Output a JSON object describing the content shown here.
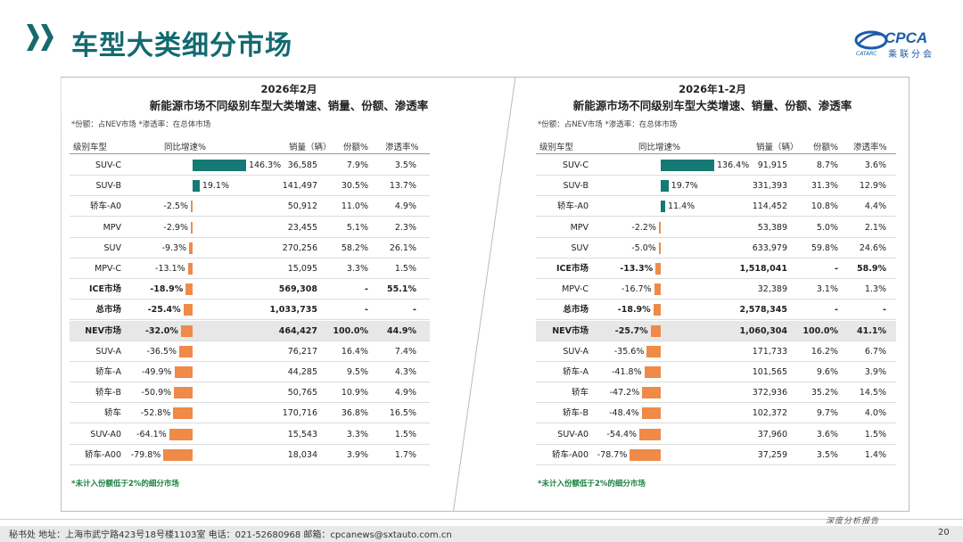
{
  "header": {
    "title": "车型大类细分市场"
  },
  "logo": {
    "text": "CPCA",
    "subtext": "乘联分会",
    "tagline": "CATARC"
  },
  "colors": {
    "accent": "#136a6f",
    "bar_positive": "#147a73",
    "bar_negative": "#ef8a49",
    "note_green": "#1a7f3e"
  },
  "columns": {
    "name": "级别车型",
    "growth": "同比增速%",
    "sales": "销量（辆）",
    "share": "份额%",
    "penetration": "渗透率%"
  },
  "note": "*份额：占NEV市场 *渗透率：在总体市场",
  "footnote": "*未计入份额低于2%的细分市场",
  "panels": [
    {
      "period": "2026年2月",
      "subtitle": "新能源市场不同级别车型大类增速、销量、份额、渗透率",
      "rows": [
        {
          "name": "SUV-C",
          "growth": "146.3%",
          "growth_value": 146.3,
          "sales": "36,585",
          "share": "7.9%",
          "penetration": "3.5%"
        },
        {
          "name": "SUV-B",
          "growth": "19.1%",
          "growth_value": 19.1,
          "sales": "141,497",
          "share": "30.5%",
          "penetration": "13.7%"
        },
        {
          "name": "轿车-A0",
          "growth": "-2.5%",
          "growth_value": -2.5,
          "sales": "50,912",
          "share": "11.0%",
          "penetration": "4.9%"
        },
        {
          "name": "MPV",
          "growth": "-2.9%",
          "growth_value": -2.9,
          "sales": "23,455",
          "share": "5.1%",
          "penetration": "2.3%"
        },
        {
          "name": "SUV",
          "growth": "-9.3%",
          "growth_value": -9.3,
          "sales": "270,256",
          "share": "58.2%",
          "penetration": "26.1%"
        },
        {
          "name": "MPV-C",
          "growth": "-13.1%",
          "growth_value": -13.1,
          "sales": "15,095",
          "share": "3.3%",
          "penetration": "1.5%"
        },
        {
          "name": "ICE市场",
          "growth": "-18.9%",
          "growth_value": -18.9,
          "sales": "569,308",
          "share": "-",
          "penetration": "55.1%",
          "bold": true
        },
        {
          "name": "总市场",
          "growth": "-25.4%",
          "growth_value": -25.4,
          "sales": "1,033,735",
          "share": "-",
          "penetration": "-",
          "bold": true
        },
        {
          "name": "NEV市场",
          "growth": "-32.0%",
          "growth_value": -32.0,
          "sales": "464,427",
          "share": "100.0%",
          "penetration": "44.9%",
          "bold": true,
          "highlight": true
        },
        {
          "name": "SUV-A",
          "growth": "-36.5%",
          "growth_value": -36.5,
          "sales": "76,217",
          "share": "16.4%",
          "penetration": "7.4%"
        },
        {
          "name": "轿车-A",
          "growth": "-49.9%",
          "growth_value": -49.9,
          "sales": "44,285",
          "share": "9.5%",
          "penetration": "4.3%"
        },
        {
          "name": "轿车-B",
          "growth": "-50.9%",
          "growth_value": -50.9,
          "sales": "50,765",
          "share": "10.9%",
          "penetration": "4.9%"
        },
        {
          "name": "轿车",
          "growth": "-52.8%",
          "growth_value": -52.8,
          "sales": "170,716",
          "share": "36.8%",
          "penetration": "16.5%"
        },
        {
          "name": "SUV-A0",
          "growth": "-64.1%",
          "growth_value": -64.1,
          "sales": "15,543",
          "share": "3.3%",
          "penetration": "1.5%"
        },
        {
          "name": "轿车-A00",
          "growth": "-79.8%",
          "growth_value": -79.8,
          "sales": "18,034",
          "share": "3.9%",
          "penetration": "1.7%"
        }
      ]
    },
    {
      "period": "2026年1-2月",
      "subtitle": "新能源市场不同级别车型大类增速、销量、份额、渗透率",
      "rows": [
        {
          "name": "SUV-C",
          "growth": "136.4%",
          "growth_value": 136.4,
          "sales": "91,915",
          "share": "8.7%",
          "penetration": "3.6%"
        },
        {
          "name": "SUV-B",
          "growth": "19.7%",
          "growth_value": 19.7,
          "sales": "331,393",
          "share": "31.3%",
          "penetration": "12.9%"
        },
        {
          "name": "轿车-A0",
          "growth": "11.4%",
          "growth_value": 11.4,
          "sales": "114,452",
          "share": "10.8%",
          "penetration": "4.4%"
        },
        {
          "name": "MPV",
          "growth": "-2.2%",
          "growth_value": -2.2,
          "sales": "53,389",
          "share": "5.0%",
          "penetration": "2.1%"
        },
        {
          "name": "SUV",
          "growth": "-5.0%",
          "growth_value": -5.0,
          "sales": "633,979",
          "share": "59.8%",
          "penetration": "24.6%"
        },
        {
          "name": "ICE市场",
          "growth": "-13.3%",
          "growth_value": -13.3,
          "sales": "1,518,041",
          "share": "-",
          "penetration": "58.9%",
          "bold": true
        },
        {
          "name": "MPV-C",
          "growth": "-16.7%",
          "growth_value": -16.7,
          "sales": "32,389",
          "share": "3.1%",
          "penetration": "1.3%"
        },
        {
          "name": "总市场",
          "growth": "-18.9%",
          "growth_value": -18.9,
          "sales": "2,578,345",
          "share": "-",
          "penetration": "-",
          "bold": true
        },
        {
          "name": "NEV市场",
          "growth": "-25.7%",
          "growth_value": -25.7,
          "sales": "1,060,304",
          "share": "100.0%",
          "penetration": "41.1%",
          "bold": true,
          "highlight": true
        },
        {
          "name": "SUV-A",
          "growth": "-35.6%",
          "growth_value": -35.6,
          "sales": "171,733",
          "share": "16.2%",
          "penetration": "6.7%"
        },
        {
          "name": "轿车-A",
          "growth": "-41.8%",
          "growth_value": -41.8,
          "sales": "101,565",
          "share": "9.6%",
          "penetration": "3.9%"
        },
        {
          "name": "轿车",
          "growth": "-47.2%",
          "growth_value": -47.2,
          "sales": "372,936",
          "share": "35.2%",
          "penetration": "14.5%"
        },
        {
          "name": "轿车-B",
          "growth": "-48.4%",
          "growth_value": -48.4,
          "sales": "102,372",
          "share": "9.7%",
          "penetration": "4.0%"
        },
        {
          "name": "SUV-A0",
          "growth": "-54.4%",
          "growth_value": -54.4,
          "sales": "37,960",
          "share": "3.6%",
          "penetration": "1.5%"
        },
        {
          "name": "轿车-A00",
          "growth": "-78.7%",
          "growth_value": -78.7,
          "sales": "37,259",
          "share": "3.5%",
          "penetration": "1.4%"
        }
      ]
    }
  ],
  "footer": {
    "contact": "秘书处  地址：上海市武宁路423号18号楼1103室  电话：021-52680968  邮箱：cpcanews@sxtauto.com.cn",
    "brand": "深度分析报告",
    "page": "20"
  }
}
